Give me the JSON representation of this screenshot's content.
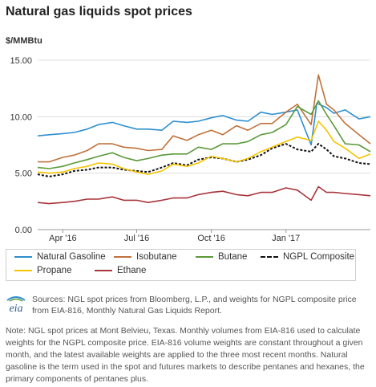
{
  "title": "Natural gas liquids spot prices",
  "unit_label": "$/MMBtu",
  "legend": [
    {
      "label": "Natural Gasoline",
      "color": "#2e8fd0",
      "dashed": false
    },
    {
      "label": "Isobutane",
      "color": "#c0713a",
      "dashed": false
    },
    {
      "label": "Butane",
      "color": "#5b9a3a",
      "dashed": false
    },
    {
      "label": "NGPL Composite",
      "color": "#111111",
      "dashed": true
    },
    {
      "label": "Propane",
      "color": "#f5c400",
      "dashed": false
    },
    {
      "label": "Ethane",
      "color": "#a8353b",
      "dashed": false
    }
  ],
  "logo_text": "eia",
  "sources": "Sources: NGL spot prices from Bloomberg, L.P., and weights for NGPL composite price from EIA-816, Monthly Natural Gas Liquids Report.",
  "note": "Note: NGL spot prices at Mont Belvieu, Texas. Monthly volumes from EIA-816 used to calculate weights for the NGPL composite price. EIA-816 volume weights are constant throughout a given month, and the latest available weights are applied to the three most recent months. Natural gasoline is the term used in the spot and futures markets to describe pentanes and hexanes, the primary components of pentanes plus.",
  "chart_data": {
    "type": "line",
    "title": "Natural gas liquids spot prices",
    "ylabel": "$/MMBtu",
    "ylim": [
      0,
      15
    ],
    "yticks": [
      "0.00",
      "5.00",
      "10.00",
      "15.00"
    ],
    "xlim": [
      "2016-03-01",
      "2017-04-15"
    ],
    "xticks": [
      {
        "label": "Apr '16",
        "date": "2016-04-01"
      },
      {
        "label": "Jul '16",
        "date": "2016-07-01"
      },
      {
        "label": "Oct '16",
        "date": "2016-10-01"
      },
      {
        "label": "Jan '17",
        "date": "2017-01-01"
      }
    ],
    "grid": true,
    "legend_position": "bottom",
    "series": [
      {
        "name": "Natural Gasoline",
        "color": "#2e8fd0",
        "points": [
          [
            "2016-03-01",
            8.3
          ],
          [
            "2016-03-15",
            8.4
          ],
          [
            "2016-04-01",
            8.5
          ],
          [
            "2016-04-15",
            8.6
          ],
          [
            "2016-05-01",
            8.9
          ],
          [
            "2016-05-15",
            9.3
          ],
          [
            "2016-06-01",
            9.5
          ],
          [
            "2016-06-15",
            9.2
          ],
          [
            "2016-07-01",
            8.9
          ],
          [
            "2016-07-15",
            8.9
          ],
          [
            "2016-08-01",
            8.8
          ],
          [
            "2016-08-15",
            9.6
          ],
          [
            "2016-09-01",
            9.5
          ],
          [
            "2016-09-15",
            9.6
          ],
          [
            "2016-10-01",
            9.9
          ],
          [
            "2016-10-15",
            10.1
          ],
          [
            "2016-11-01",
            9.7
          ],
          [
            "2016-11-15",
            9.6
          ],
          [
            "2016-12-01",
            10.4
          ],
          [
            "2016-12-15",
            10.2
          ],
          [
            "2017-01-01",
            10.4
          ],
          [
            "2017-01-15",
            10.6
          ],
          [
            "2017-02-01",
            7.5
          ],
          [
            "2017-02-08",
            11.2
          ],
          [
            "2017-02-20",
            10.8
          ],
          [
            "2017-03-01",
            10.3
          ],
          [
            "2017-03-15",
            10.6
          ],
          [
            "2017-04-01",
            9.8
          ],
          [
            "2017-04-15",
            10.0
          ]
        ]
      },
      {
        "name": "Isobutane",
        "color": "#c0713a",
        "points": [
          [
            "2016-03-01",
            6.0
          ],
          [
            "2016-03-15",
            6.0
          ],
          [
            "2016-04-01",
            6.4
          ],
          [
            "2016-04-15",
            6.6
          ],
          [
            "2016-05-01",
            7.0
          ],
          [
            "2016-05-15",
            7.6
          ],
          [
            "2016-06-01",
            7.6
          ],
          [
            "2016-06-15",
            7.3
          ],
          [
            "2016-07-01",
            7.2
          ],
          [
            "2016-07-15",
            7.0
          ],
          [
            "2016-08-01",
            7.1
          ],
          [
            "2016-08-15",
            8.3
          ],
          [
            "2016-09-01",
            7.9
          ],
          [
            "2016-09-15",
            8.4
          ],
          [
            "2016-10-01",
            8.8
          ],
          [
            "2016-10-15",
            8.4
          ],
          [
            "2016-11-01",
            9.2
          ],
          [
            "2016-11-15",
            8.8
          ],
          [
            "2016-12-01",
            9.4
          ],
          [
            "2016-12-15",
            9.4
          ],
          [
            "2017-01-01",
            10.4
          ],
          [
            "2017-01-15",
            11.1
          ],
          [
            "2017-02-01",
            9.3
          ],
          [
            "2017-02-10",
            13.7
          ],
          [
            "2017-02-20",
            11.1
          ],
          [
            "2017-03-01",
            10.6
          ],
          [
            "2017-03-15",
            9.4
          ],
          [
            "2017-04-01",
            8.4
          ],
          [
            "2017-04-15",
            7.6
          ]
        ]
      },
      {
        "name": "Butane",
        "color": "#5b9a3a",
        "points": [
          [
            "2016-03-01",
            5.5
          ],
          [
            "2016-03-15",
            5.4
          ],
          [
            "2016-04-01",
            5.6
          ],
          [
            "2016-04-15",
            5.9
          ],
          [
            "2016-05-01",
            6.2
          ],
          [
            "2016-05-15",
            6.5
          ],
          [
            "2016-06-01",
            6.8
          ],
          [
            "2016-06-15",
            6.4
          ],
          [
            "2016-07-01",
            6.1
          ],
          [
            "2016-07-15",
            6.3
          ],
          [
            "2016-08-01",
            6.6
          ],
          [
            "2016-08-15",
            6.7
          ],
          [
            "2016-09-01",
            6.7
          ],
          [
            "2016-09-15",
            7.3
          ],
          [
            "2016-10-01",
            7.1
          ],
          [
            "2016-10-15",
            7.6
          ],
          [
            "2016-11-01",
            7.6
          ],
          [
            "2016-11-15",
            7.8
          ],
          [
            "2016-12-01",
            8.4
          ],
          [
            "2016-12-15",
            8.6
          ],
          [
            "2017-01-01",
            9.3
          ],
          [
            "2017-01-15",
            10.9
          ],
          [
            "2017-02-01",
            10.2
          ],
          [
            "2017-02-10",
            11.4
          ],
          [
            "2017-02-20",
            10.2
          ],
          [
            "2017-03-01",
            9.2
          ],
          [
            "2017-03-15",
            7.6
          ],
          [
            "2017-04-01",
            7.5
          ],
          [
            "2017-04-15",
            6.9
          ]
        ]
      },
      {
        "name": "NGPL Composite",
        "color": "#111111",
        "points": [
          [
            "2016-03-01",
            4.9
          ],
          [
            "2016-03-15",
            4.7
          ],
          [
            "2016-04-01",
            4.9
          ],
          [
            "2016-04-15",
            5.2
          ],
          [
            "2016-05-01",
            5.3
          ],
          [
            "2016-05-15",
            5.5
          ],
          [
            "2016-06-01",
            5.5
          ],
          [
            "2016-06-15",
            5.3
          ],
          [
            "2016-07-01",
            5.2
          ],
          [
            "2016-07-15",
            5.1
          ],
          [
            "2016-08-01",
            5.5
          ],
          [
            "2016-08-15",
            5.9
          ],
          [
            "2016-09-01",
            5.7
          ],
          [
            "2016-09-15",
            6.2
          ],
          [
            "2016-10-01",
            6.4
          ],
          [
            "2016-10-15",
            6.3
          ],
          [
            "2016-11-01",
            6.0
          ],
          [
            "2016-11-15",
            6.2
          ],
          [
            "2016-12-01",
            6.6
          ],
          [
            "2016-12-15",
            7.2
          ],
          [
            "2017-01-01",
            7.6
          ],
          [
            "2017-01-15",
            7.1
          ],
          [
            "2017-02-01",
            6.9
          ],
          [
            "2017-02-10",
            7.6
          ],
          [
            "2017-02-20",
            7.1
          ],
          [
            "2017-03-01",
            6.5
          ],
          [
            "2017-03-15",
            6.3
          ],
          [
            "2017-04-01",
            5.9
          ],
          [
            "2017-04-15",
            5.8
          ]
        ]
      },
      {
        "name": "Propane",
        "color": "#f5c400",
        "points": [
          [
            "2016-03-01",
            5.1
          ],
          [
            "2016-03-15",
            5.0
          ],
          [
            "2016-04-01",
            5.1
          ],
          [
            "2016-04-15",
            5.4
          ],
          [
            "2016-05-01",
            5.6
          ],
          [
            "2016-05-15",
            5.9
          ],
          [
            "2016-06-01",
            5.8
          ],
          [
            "2016-06-15",
            5.4
          ],
          [
            "2016-07-01",
            5.1
          ],
          [
            "2016-07-15",
            4.9
          ],
          [
            "2016-08-01",
            5.2
          ],
          [
            "2016-08-15",
            5.8
          ],
          [
            "2016-09-01",
            5.6
          ],
          [
            "2016-09-15",
            5.9
          ],
          [
            "2016-10-01",
            6.5
          ],
          [
            "2016-10-15",
            6.3
          ],
          [
            "2016-11-01",
            6.0
          ],
          [
            "2016-11-15",
            6.3
          ],
          [
            "2016-12-01",
            6.9
          ],
          [
            "2016-12-15",
            7.3
          ],
          [
            "2017-01-01",
            7.8
          ],
          [
            "2017-01-15",
            8.2
          ],
          [
            "2017-02-01",
            7.9
          ],
          [
            "2017-02-10",
            9.6
          ],
          [
            "2017-02-20",
            8.8
          ],
          [
            "2017-03-01",
            7.8
          ],
          [
            "2017-03-15",
            7.2
          ],
          [
            "2017-04-01",
            6.3
          ],
          [
            "2017-04-15",
            6.7
          ]
        ]
      },
      {
        "name": "Ethane",
        "color": "#a8353b",
        "points": [
          [
            "2016-03-01",
            2.4
          ],
          [
            "2016-03-15",
            2.3
          ],
          [
            "2016-04-01",
            2.4
          ],
          [
            "2016-04-15",
            2.5
          ],
          [
            "2016-05-01",
            2.7
          ],
          [
            "2016-05-15",
            2.7
          ],
          [
            "2016-06-01",
            2.9
          ],
          [
            "2016-06-15",
            2.6
          ],
          [
            "2016-07-01",
            2.6
          ],
          [
            "2016-07-15",
            2.4
          ],
          [
            "2016-08-01",
            2.6
          ],
          [
            "2016-08-15",
            2.8
          ],
          [
            "2016-09-01",
            2.8
          ],
          [
            "2016-09-15",
            3.1
          ],
          [
            "2016-10-01",
            3.3
          ],
          [
            "2016-10-15",
            3.4
          ],
          [
            "2016-11-01",
            3.1
          ],
          [
            "2016-11-15",
            3.0
          ],
          [
            "2016-12-01",
            3.3
          ],
          [
            "2016-12-15",
            3.3
          ],
          [
            "2017-01-01",
            3.7
          ],
          [
            "2017-01-15",
            3.5
          ],
          [
            "2017-02-01",
            2.6
          ],
          [
            "2017-02-10",
            3.8
          ],
          [
            "2017-02-20",
            3.3
          ],
          [
            "2017-03-01",
            3.3
          ],
          [
            "2017-03-15",
            3.2
          ],
          [
            "2017-04-01",
            3.1
          ],
          [
            "2017-04-15",
            3.0
          ]
        ]
      }
    ]
  }
}
